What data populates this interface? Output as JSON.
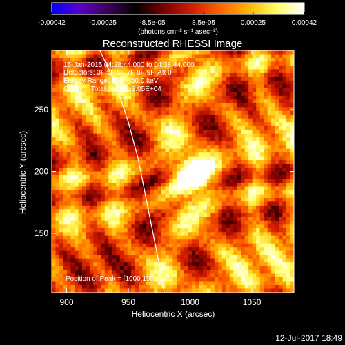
{
  "chart_data": {
    "type": "heatmap",
    "title": "Reconstructed RHESSI Image",
    "xlabel": "Heliocentric X (arcsec)",
    "ylabel": "Heliocentric Y (arcsec)",
    "xlim": [
      888,
      1084
    ],
    "ylim": [
      102,
      298
    ],
    "x_ticks": [
      900,
      950,
      1000,
      1050
    ],
    "y_ticks": [
      150,
      200,
      250
    ],
    "colorbar": {
      "min": -0.00042,
      "max": 0.00042,
      "tick_labels": [
        "-0.00042",
        "-0.00025",
        "-8.5e-05",
        "8.5e-05",
        "0.00025",
        "0.00042"
      ],
      "tick_values": [
        -0.00042,
        -0.00025,
        -8.5e-05,
        8.5e-05,
        0.00025,
        0.00042
      ],
      "unit_label": "(photons cm⁻² s⁻¹ asec⁻²)",
      "colors": [
        "#0000ff",
        "#5a00c8",
        "#3c005a",
        "#000000",
        "#7a0000",
        "#d21e00",
        "#ff6400",
        "#ffb400",
        "#ffff64",
        "#ffffff"
      ]
    },
    "annotations": {
      "time_range": "15-Jan-2015 04:28:44.000 to 04:38:44.000",
      "detectors": "Detectors: 3F 5F 6F 7F 8F 9F, Att 0",
      "energy": "Energy Range: 25.0 - 50.0 keV",
      "clean": "Clean     Total counts: 3.05E+04",
      "peak": "Position of Peak = [1000,198]"
    },
    "limb": [
      [
        927,
        298
      ],
      [
        940,
        270
      ],
      [
        950,
        240
      ],
      [
        958,
        210
      ],
      [
        964,
        180
      ],
      [
        970,
        150
      ],
      [
        976,
        120
      ],
      [
        979,
        102
      ]
    ],
    "peak": [
      1000,
      198
    ],
    "footer_timestamp": "12-Jul-2017 18:49"
  }
}
